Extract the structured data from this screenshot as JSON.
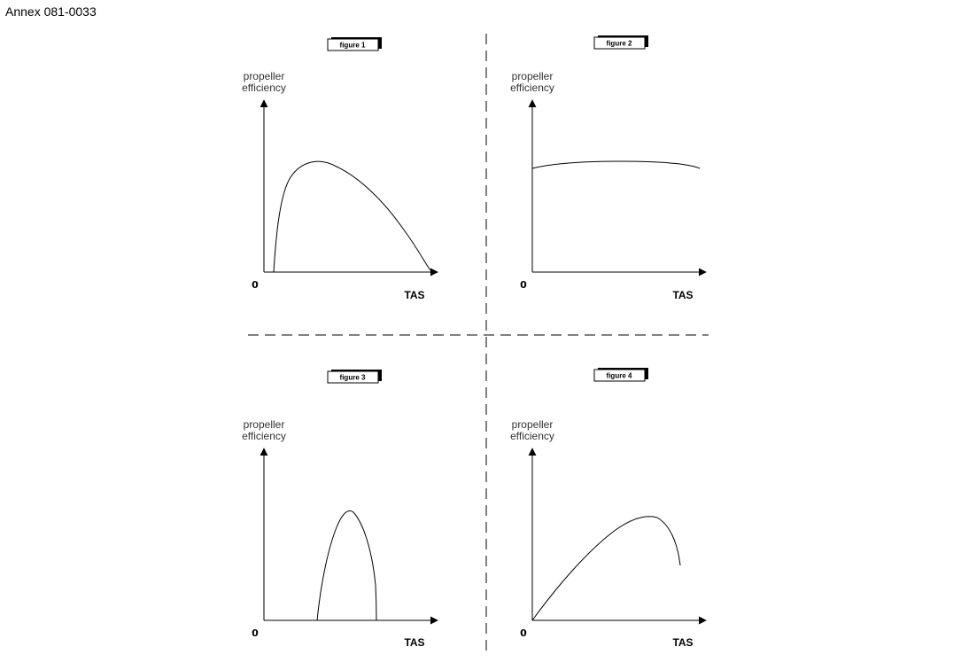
{
  "annex": "Annex 081-0033",
  "panels": [
    {
      "figure_label": "figure 1",
      "y_label_line1": "propeller",
      "y_label_line2": "efficiency",
      "origin_label": "0",
      "x_label": "TAS"
    },
    {
      "figure_label": "figure 2",
      "y_label_line1": "propeller",
      "y_label_line2": "efficiency",
      "origin_label": "0",
      "x_label": "TAS"
    },
    {
      "figure_label": "figure 3",
      "y_label_line1": "propeller",
      "y_label_line2": "efficiency",
      "origin_label": "0",
      "x_label": "TAS"
    },
    {
      "figure_label": "figure 4",
      "y_label_line1": "propeller",
      "y_label_line2": "efficiency",
      "origin_label": "0",
      "x_label": "TAS"
    }
  ]
}
